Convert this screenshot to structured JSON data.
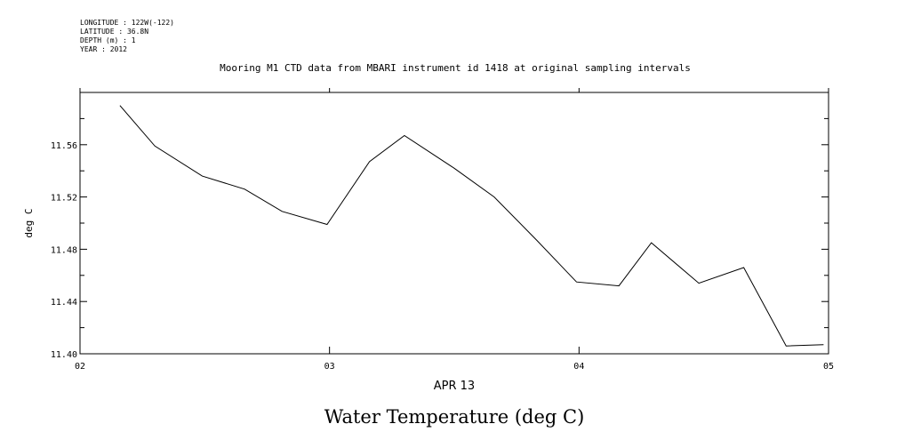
{
  "meta": {
    "longitude": "LONGITUDE : 122W(-122)",
    "latitude": "LATITUDE : 36.8N",
    "depth": "DEPTH (m) : 1",
    "year": "YEAR : 2012"
  },
  "chart_data": {
    "type": "line",
    "title": "Mooring M1 CTD data from MBARI instrument id 1418 at original sampling intervals",
    "xlabel": "APR 13",
    "ylabel": "deg C",
    "caption": "Water Temperature (deg C)",
    "xlim": [
      2.0,
      5.0
    ],
    "ylim": [
      11.4,
      11.6
    ],
    "x_ticks": [
      2,
      3,
      4,
      5
    ],
    "x_tick_labels": [
      "02",
      "03",
      "04",
      "05"
    ],
    "y_ticks": [
      11.4,
      11.44,
      11.48,
      11.52,
      11.56
    ],
    "y_tick_labels": [
      "11.40",
      "11.44",
      "11.48",
      "11.52",
      "11.56"
    ],
    "grid": false,
    "series": [
      {
        "name": "",
        "color": "#000000",
        "x": [
          2.16,
          2.3,
          2.49,
          2.66,
          2.81,
          2.99,
          3.16,
          3.3,
          3.5,
          3.66,
          3.83,
          3.99,
          4.16,
          4.29,
          4.48,
          4.66,
          4.83,
          4.98
        ],
        "y": [
          11.59,
          11.559,
          11.536,
          11.526,
          11.509,
          11.499,
          11.547,
          11.567,
          11.542,
          11.52,
          11.487,
          11.455,
          11.452,
          11.485,
          11.454,
          11.466,
          11.406,
          11.407
        ]
      }
    ]
  }
}
